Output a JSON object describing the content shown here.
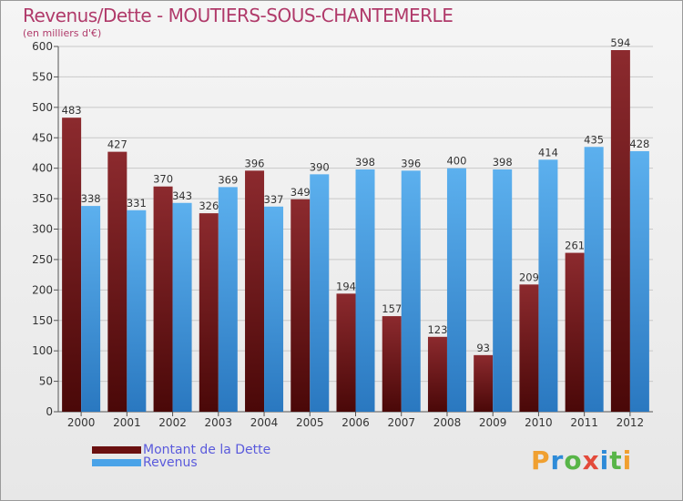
{
  "title": "Revenus/Dette - MOUTIERS-SOUS-CHANTEMERLE",
  "subtitle": "(en milliers d'€)",
  "logo": "Proxiti",
  "colors": {
    "debt_top": "#8c2a2e",
    "debt_bottom": "#4a0808",
    "revenue_top": "#5cb0ee",
    "revenue_bottom": "#2a78c0",
    "grid": "#c8c8c8",
    "title": "#b03a6a",
    "legend_text": "#5a5adc"
  },
  "legend": [
    {
      "label": "Montant de la Dette",
      "color": "#6a1010"
    },
    {
      "label": "Revenus",
      "color": "#4aa3e8"
    }
  ],
  "chart_data": {
    "type": "bar",
    "categories": [
      "2000",
      "2001",
      "2002",
      "2003",
      "2004",
      "2005",
      "2006",
      "2007",
      "2008",
      "2009",
      "2010",
      "2011",
      "2012"
    ],
    "series": [
      {
        "name": "Montant de la Dette",
        "values": [
          483,
          427,
          370,
          326,
          396,
          349,
          194,
          157,
          123,
          93,
          209,
          261,
          594
        ]
      },
      {
        "name": "Revenus",
        "values": [
          338,
          331,
          343,
          369,
          337,
          390,
          398,
          396,
          400,
          398,
          414,
          435,
          428
        ]
      }
    ],
    "ylim": [
      0,
      600
    ],
    "yticks": [
      0,
      50,
      100,
      150,
      200,
      250,
      300,
      350,
      400,
      450,
      500,
      550,
      600
    ],
    "grid": true,
    "legend_position": "bottom-left"
  }
}
